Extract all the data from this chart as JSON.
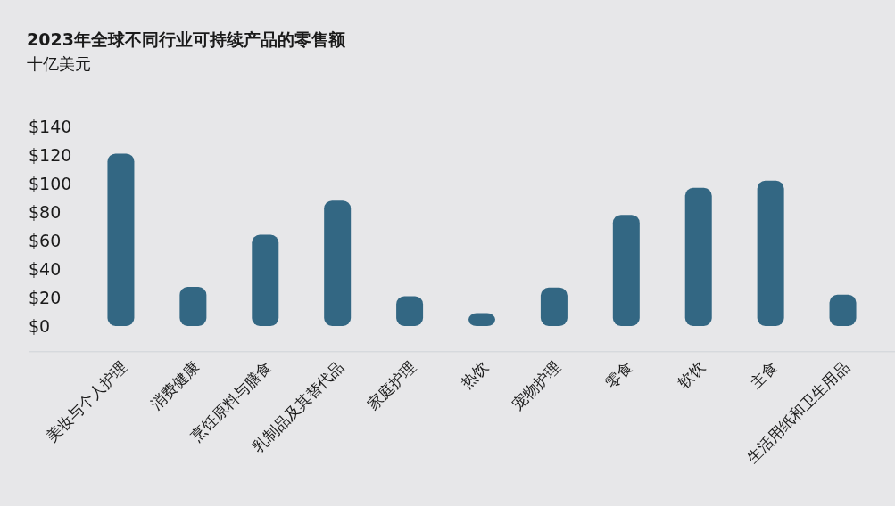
{
  "chart_data": {
    "type": "bar",
    "title": "2023年全球不同行业可持续产品的零售额",
    "subtitle": "十亿美元",
    "categories": [
      "美妆与个人护理",
      "消费健康",
      "烹饪原料与膳食",
      "乳制品及其替代品",
      "家庭护理",
      "热饮",
      "宠物护理",
      "零食",
      "软饮",
      "主食",
      "生活用纸和卫生用品"
    ],
    "values": [
      121,
      27.5,
      64,
      88,
      21,
      9,
      27,
      78,
      97,
      102,
      22
    ],
    "color": "#336783",
    "ylim": [
      -18,
      140
    ],
    "yticks": [
      {
        "value": 0,
        "label": "$0"
      },
      {
        "value": 20,
        "label": "$20"
      },
      {
        "value": 40,
        "label": "$40"
      },
      {
        "value": 60,
        "label": "$60"
      },
      {
        "value": 80,
        "label": "$80"
      },
      {
        "value": 100,
        "label": "$100"
      },
      {
        "value": 120,
        "label": "$120"
      },
      {
        "value": 140,
        "label": "$140"
      }
    ],
    "grid": false
  }
}
